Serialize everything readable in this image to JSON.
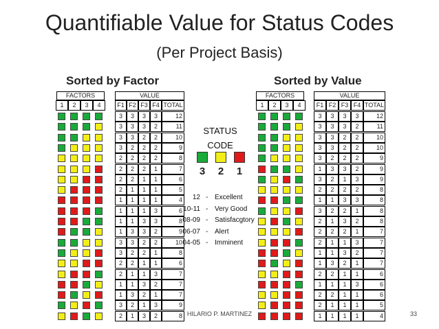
{
  "title": "Quantifiable Value for Status Codes",
  "subtitle": "(Per Project Basis)",
  "colors": {
    "3": "#1aaa3a",
    "2": "#f3ee17",
    "1": "#e01a1a"
  },
  "left": {
    "heading": "Sorted by Factor",
    "factors_label": "FACTORS",
    "value_label": "VALUE",
    "factor_headers": [
      "1",
      "2",
      "3",
      "4"
    ],
    "value_headers": [
      "F1",
      "F2",
      "F3",
      "F4",
      "TOTAL"
    ],
    "rows": [
      [
        3,
        3,
        3,
        3,
        12
      ],
      [
        3,
        3,
        3,
        2,
        11
      ],
      [
        3,
        3,
        2,
        2,
        10
      ],
      [
        3,
        2,
        2,
        2,
        9
      ],
      [
        2,
        2,
        2,
        2,
        8
      ],
      [
        2,
        2,
        2,
        1,
        7
      ],
      [
        2,
        2,
        1,
        1,
        6
      ],
      [
        2,
        1,
        1,
        1,
        5
      ],
      [
        1,
        1,
        1,
        1,
        4
      ],
      [
        1,
        1,
        1,
        3,
        6
      ],
      [
        1,
        1,
        3,
        3,
        8
      ],
      [
        1,
        3,
        3,
        2,
        9
      ],
      [
        3,
        3,
        2,
        2,
        10
      ],
      [
        3,
        2,
        2,
        1,
        8
      ],
      [
        2,
        2,
        1,
        1,
        6
      ],
      [
        2,
        1,
        1,
        3,
        7
      ],
      [
        1,
        1,
        3,
        2,
        7
      ],
      [
        1,
        3,
        2,
        1,
        7
      ],
      [
        3,
        2,
        1,
        3,
        9
      ],
      [
        2,
        1,
        3,
        2,
        8
      ]
    ]
  },
  "right": {
    "heading": "Sorted by Value",
    "factors_label": "FACTORS",
    "value_label": "VALUE",
    "factor_headers": [
      "1",
      "2",
      "3",
      "4"
    ],
    "value_headers": [
      "F1",
      "F2",
      "F3",
      "F4",
      "TOTAL"
    ],
    "rows": [
      [
        3,
        3,
        3,
        3,
        12
      ],
      [
        3,
        3,
        3,
        2,
        11
      ],
      [
        3,
        3,
        2,
        2,
        10
      ],
      [
        3,
        3,
        2,
        2,
        10
      ],
      [
        3,
        2,
        2,
        2,
        9
      ],
      [
        1,
        3,
        3,
        2,
        9
      ],
      [
        3,
        2,
        1,
        3,
        9
      ],
      [
        2,
        2,
        2,
        2,
        8
      ],
      [
        1,
        1,
        3,
        3,
        8
      ],
      [
        3,
        2,
        2,
        1,
        8
      ],
      [
        2,
        1,
        3,
        2,
        8
      ],
      [
        2,
        2,
        2,
        1,
        7
      ],
      [
        2,
        1,
        1,
        3,
        7
      ],
      [
        1,
        1,
        3,
        2,
        7
      ],
      [
        1,
        3,
        2,
        1,
        7
      ],
      [
        2,
        2,
        1,
        1,
        6
      ],
      [
        1,
        1,
        1,
        3,
        6
      ],
      [
        2,
        2,
        1,
        1,
        6
      ],
      [
        2,
        1,
        1,
        1,
        5
      ],
      [
        1,
        1,
        1,
        1,
        4
      ]
    ]
  },
  "status": {
    "line1": "STATUS",
    "line2": "CODE",
    "numbers": [
      "3",
      "2",
      "1"
    ]
  },
  "legend": [
    {
      "range": "12",
      "dash": "-",
      "label": "Excellent"
    },
    {
      "range": "10-11",
      "dash": "-",
      "label": "Very Good"
    },
    {
      "range": "08-09",
      "dash": "-",
      "label": "Satisfacgtory"
    },
    {
      "range": "06-07",
      "dash": "-",
      "label": "Alert"
    },
    {
      "range": "04-05",
      "dash": "-",
      "label": "Imminent"
    }
  ],
  "footer": "HILARIO P. MARTINEZ",
  "page_number": "33"
}
